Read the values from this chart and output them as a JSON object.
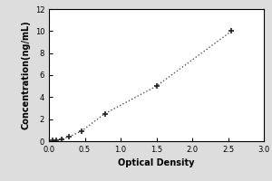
{
  "x_data": [
    0.05,
    0.1,
    0.18,
    0.28,
    0.45,
    0.78,
    1.5,
    2.55
  ],
  "y_data": [
    0.05,
    0.1,
    0.2,
    0.4,
    0.9,
    2.5,
    5.0,
    10.0
  ],
  "xlabel": "Optical Density",
  "ylabel": "Concentration(ng/mL)",
  "xlim": [
    0,
    3
  ],
  "ylim": [
    0,
    12
  ],
  "xticks": [
    0,
    0.5,
    1,
    1.5,
    2,
    2.5,
    3
  ],
  "yticks": [
    0,
    2,
    4,
    6,
    8,
    10,
    12
  ],
  "line_color": "#555555",
  "marker_color": "#222222",
  "marker": "+",
  "markersize": 5,
  "markeredgewidth": 1.2,
  "linewidth": 1.0,
  "linestyle": "dotted",
  "background_color": "#ffffff",
  "label_fontsize": 7,
  "tick_fontsize": 6,
  "outer_bg": "#dddddd"
}
